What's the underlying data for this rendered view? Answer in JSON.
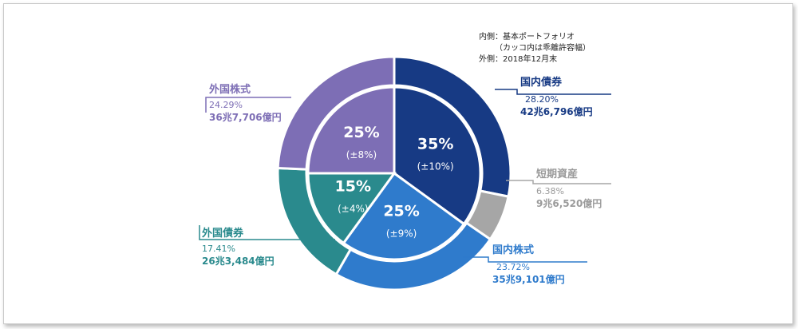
{
  "note": {
    "line1": "内側：基本ポートフォリオ",
    "line2": "（カッコ内は乖離許容幅）",
    "line3": "外側：2018年12月末"
  },
  "colors": {
    "domestic_bonds": "#173a84",
    "short_term": "#a6a6a6",
    "domestic_equities": "#2f7bcc",
    "foreign_bonds": "#2a8a8d",
    "foreign_equities": "#7d6eb5"
  },
  "chart_data": {
    "type": "pie",
    "rings": [
      {
        "ring": "outer",
        "label": "外側：2018年12月末",
        "slices": [
          {
            "name": "国内債券",
            "percent": 28.2,
            "value_text": "42兆6,796億円",
            "color_key": "domestic_bonds"
          },
          {
            "name": "短期資産",
            "percent": 6.38,
            "value_text": "9兆6,520億円",
            "color_key": "short_term"
          },
          {
            "name": "国内株式",
            "percent": 23.72,
            "value_text": "35兆9,101億円",
            "color_key": "domestic_equities"
          },
          {
            "name": "外国債券",
            "percent": 17.41,
            "value_text": "26兆3,484億円",
            "color_key": "foreign_bonds"
          },
          {
            "name": "外国株式",
            "percent": 24.29,
            "value_text": "36兆7,706億円",
            "color_key": "foreign_equities"
          }
        ]
      },
      {
        "ring": "inner",
        "label": "内側：基本ポートフォリオ",
        "slices": [
          {
            "name": "国内債券",
            "percent": 35,
            "range": "(±10%)",
            "label": "35%",
            "color_key": "domestic_bonds"
          },
          {
            "name": "国内株式",
            "percent": 25,
            "range": "(±9%)",
            "label": "25%",
            "color_key": "domestic_equities"
          },
          {
            "name": "外国債券",
            "percent": 15,
            "range": "(±4%)",
            "label": "15%",
            "color_key": "foreign_bonds"
          },
          {
            "name": "外国株式",
            "percent": 25,
            "range": "(±8%)",
            "label": "25%",
            "color_key": "foreign_equities"
          }
        ]
      }
    ]
  },
  "labels": {
    "domestic_bonds": {
      "name": "国内債券",
      "pct": "28.20%",
      "amt": "42兆6,796億円"
    },
    "short_term": {
      "name": "短期資産",
      "pct": "6.38%",
      "amt": "9兆6,520億円"
    },
    "domestic_equities": {
      "name": "国内株式",
      "pct": "23.72%",
      "amt": "35兆9,101億円"
    },
    "foreign_bonds": {
      "name": "外国債券",
      "pct": "17.41%",
      "amt": "26兆3,484億円"
    },
    "foreign_equities": {
      "name": "外国株式",
      "pct": "24.29%",
      "amt": "36兆7,706億円"
    }
  }
}
